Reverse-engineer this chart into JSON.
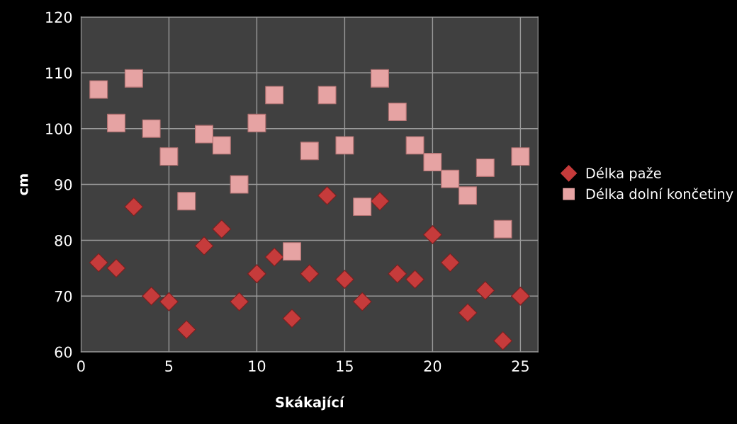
{
  "chart_data": {
    "type": "scatter",
    "xlabel": "Skákající",
    "ylabel": "cm",
    "x": [
      1,
      2,
      3,
      4,
      5,
      6,
      7,
      8,
      9,
      10,
      11,
      12,
      13,
      14,
      15,
      16,
      17,
      18,
      19,
      20,
      21,
      22,
      23,
      24,
      25
    ],
    "series": [
      {
        "name": "Délka paže",
        "color": "#c63b3b",
        "marker": "diamond",
        "values": [
          76,
          75,
          86,
          70,
          69,
          64,
          79,
          82,
          69,
          74,
          77,
          66,
          74,
          88,
          73,
          69,
          87,
          74,
          73,
          81,
          76,
          67,
          71,
          62,
          70
        ]
      },
      {
        "name": "Délka dolní končetiny",
        "color": "#e6a3a3",
        "marker": "square",
        "values": [
          107,
          101,
          109,
          100,
          95,
          87,
          99,
          97,
          90,
          101,
          106,
          78,
          96,
          106,
          97,
          86,
          109,
          103,
          97,
          94,
          91,
          88,
          93,
          82,
          95
        ]
      }
    ],
    "xlim": [
      0,
      26
    ],
    "xticks": [
      0,
      5,
      10,
      15,
      20,
      25
    ],
    "ylim": [
      60,
      120
    ],
    "yticks": [
      60,
      70,
      80,
      90,
      100,
      110,
      120
    ],
    "grid": true,
    "legend": "right"
  }
}
